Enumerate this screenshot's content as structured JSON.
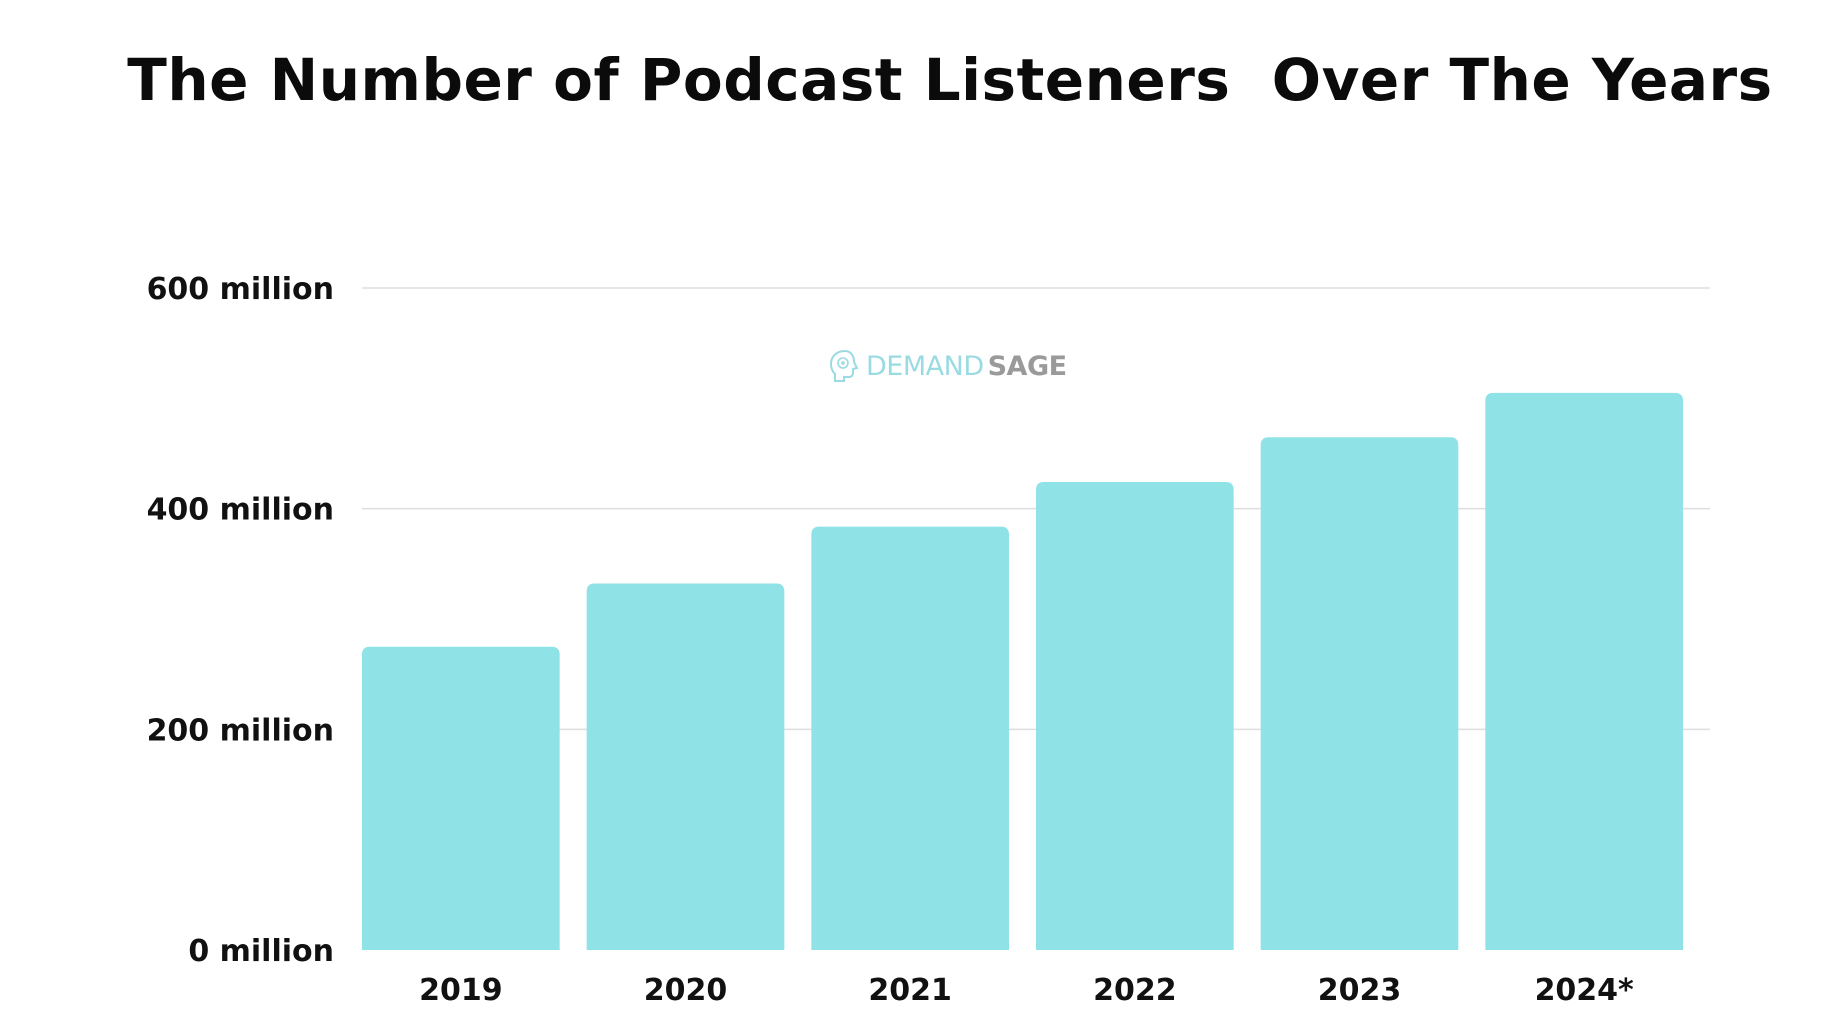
{
  "title": "The Number of Podcast Listeners  Over The Years",
  "watermark": {
    "part1": "DEMANDSAGE",
    "part2": "",
    "text_a": "DEMAND",
    "text_b": "SAGE",
    "icon": "brain-head-icon"
  },
  "colors": {
    "bar": "#8fe2e6",
    "grid": "#dedede",
    "text": "#111111"
  },
  "chart_data": {
    "type": "bar",
    "title": "The Number of Podcast Listeners  Over The Years",
    "xlabel": "",
    "ylabel": "",
    "categories": [
      "2019",
      "2020",
      "2021",
      "2022",
      "2023",
      "2024*"
    ],
    "values": [
      274.8,
      332.2,
      383.7,
      424.2,
      464.7,
      504.9
    ],
    "ylim": [
      0,
      600
    ],
    "yticks": [
      0,
      200,
      400,
      600
    ],
    "ytick_labels": [
      "0 million",
      "200 million",
      "400 million",
      "600 million"
    ],
    "grid": true,
    "legend": "none"
  }
}
